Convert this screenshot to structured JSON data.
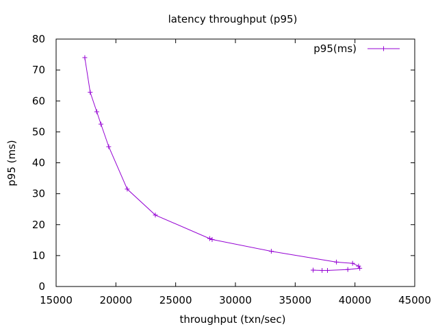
{
  "chart_data": {
    "type": "line",
    "title": "latency throughput (p95)",
    "xlabel": "throughput (txn/sec)",
    "ylabel": "p95 (ms)",
    "xlim": [
      15000,
      45000
    ],
    "ylim": [
      0,
      80
    ],
    "x_ticks": [
      15000,
      20000,
      25000,
      30000,
      35000,
      40000,
      45000
    ],
    "y_ticks": [
      0,
      10,
      20,
      30,
      40,
      50,
      60,
      70,
      80
    ],
    "x_tick_labels": [
      "15000",
      "20000",
      "25000",
      "30000",
      "35000",
      "40000",
      "45000"
    ],
    "y_tick_labels": [
      "0",
      "10",
      "20",
      "30",
      "40",
      "50",
      "60",
      "70",
      "80"
    ],
    "grid": false,
    "legend": "top-right",
    "series": [
      {
        "name": "p95(ms)",
        "color": "#9400d3",
        "marker": "plus",
        "x": [
          17400,
          17850,
          18400,
          18750,
          19400,
          20950,
          23300,
          27850,
          28050,
          33000,
          38450,
          39800,
          40300,
          40400,
          39400,
          37700,
          37250,
          36500
        ],
        "y": [
          74.0,
          62.8,
          56.5,
          52.5,
          45.2,
          31.5,
          23.1,
          15.5,
          15.2,
          11.4,
          7.9,
          7.5,
          6.6,
          5.9,
          5.5,
          5.2,
          5.2,
          5.3
        ]
      }
    ]
  }
}
